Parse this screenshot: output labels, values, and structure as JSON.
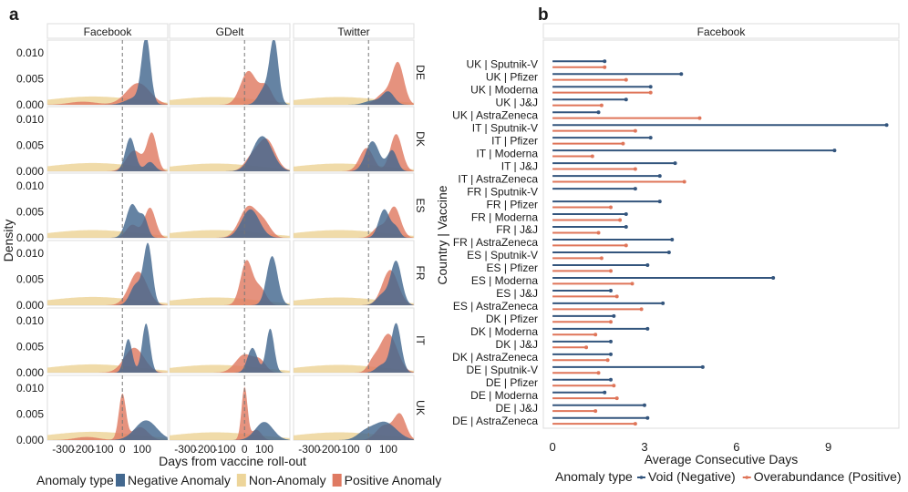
{
  "chart_data": [
    {
      "panel": "a",
      "type": "area",
      "title": "",
      "facet_columns": [
        "Facebook",
        "GDelt",
        "Twitter"
      ],
      "facet_rows": [
        "DE",
        "DK",
        "ES",
        "FR",
        "IT",
        "UK"
      ],
      "xlabel": "Days from vaccine roll-out",
      "ylabel": "Density",
      "xlim": [
        -380,
        230
      ],
      "ylim": [
        0,
        0.0125
      ],
      "x_ticks": [
        {
          "v": -300,
          "label": "-300"
        },
        {
          "v": -200,
          "label": "-200"
        },
        {
          "v": -100,
          "label": "-100"
        },
        {
          "v": 0,
          "label": "0"
        },
        {
          "v": 100,
          "label": "100"
        }
      ],
      "y_ticks": [
        {
          "v": 0,
          "label": "0.000"
        },
        {
          "v": 0.005,
          "label": "0.005"
        },
        {
          "v": 0.01,
          "label": "0.010"
        }
      ],
      "reference_line_x": 0,
      "legend_title": "Anomaly type",
      "legend_position": "bottom",
      "series": [
        {
          "name": "Negative Anomaly",
          "color": "#43688f"
        },
        {
          "name": "Non-Anomaly",
          "color": "#edd59a"
        },
        {
          "name": "Positive Anomaly",
          "color": "#df7a62"
        }
      ],
      "cells": {
        "DE|Facebook": {
          "neg": [
            [
              120,
              0.0126,
              22
            ],
            [
              70,
              0.0014,
              50
            ]
          ],
          "non": [
            [
              -150,
              0.0016,
              230
            ]
          ],
          "pos": [
            [
              80,
              0.0042,
              60
            ],
            [
              -200,
              0.0006,
              70
            ]
          ]
        },
        "DE|GDelt": {
          "neg": [
            [
              150,
              0.0122,
              22
            ],
            [
              100,
              0.003,
              30
            ]
          ],
          "non": [
            [
              -150,
              0.0015,
              230
            ]
          ],
          "pos": [
            [
              20,
              0.0065,
              40
            ],
            [
              110,
              0.0035,
              30
            ]
          ]
        },
        "DE|Twitter": {
          "neg": [
            [
              100,
              0.0025,
              30
            ],
            [
              20,
              0.0008,
              40
            ]
          ],
          "non": [
            [
              -150,
              0.0015,
              230
            ]
          ],
          "pos": [
            [
              150,
              0.0078,
              30
            ],
            [
              80,
              0.0022,
              40
            ]
          ]
        },
        "DK|Facebook": {
          "neg": [
            [
              40,
              0.0065,
              25
            ],
            [
              140,
              0.0018,
              25
            ]
          ],
          "non": [
            [
              -150,
              0.0016,
              230
            ]
          ],
          "pos": [
            [
              150,
              0.0072,
              25
            ],
            [
              60,
              0.004,
              40
            ]
          ]
        },
        "DK|GDelt": {
          "neg": [
            [
              90,
              0.0068,
              50
            ]
          ],
          "non": [
            [
              -150,
              0.0015,
              230
            ]
          ],
          "pos": [
            [
              110,
              0.0062,
              45
            ],
            [
              30,
              0.002,
              35
            ]
          ]
        },
        "DK|Twitter": {
          "neg": [
            [
              20,
              0.0058,
              35
            ],
            [
              120,
              0.004,
              25
            ]
          ],
          "non": [
            [
              -150,
              0.0015,
              230
            ]
          ],
          "pos": [
            [
              140,
              0.0072,
              30
            ],
            [
              -10,
              0.0045,
              35
            ]
          ]
        },
        "ES|Facebook": {
          "neg": [
            [
              50,
              0.0065,
              30
            ],
            [
              110,
              0.0035,
              20
            ]
          ],
          "non": [
            [
              -150,
              0.0015,
              230
            ]
          ],
          "pos": [
            [
              140,
              0.0058,
              28
            ],
            [
              50,
              0.0025,
              30
            ]
          ]
        },
        "ES|GDelt": {
          "neg": [
            [
              30,
              0.0055,
              45
            ]
          ],
          "non": [
            [
              -150,
              0.0015,
              230
            ]
          ],
          "pos": [
            [
              20,
              0.006,
              45
            ],
            [
              100,
              0.0025,
              35
            ]
          ]
        },
        "ES|Twitter": {
          "neg": [
            [
              80,
              0.0055,
              28
            ],
            [
              140,
              0.0018,
              20
            ]
          ],
          "non": [
            [
              -150,
              0.0015,
              230
            ]
          ],
          "pos": [
            [
              130,
              0.006,
              32
            ],
            [
              50,
              0.002,
              30
            ]
          ]
        },
        "FR|Facebook": {
          "neg": [
            [
              130,
              0.0115,
              22
            ],
            [
              70,
              0.004,
              30
            ]
          ],
          "non": [
            [
              -150,
              0.0016,
              230
            ]
          ],
          "pos": [
            [
              80,
              0.0065,
              45
            ]
          ]
        },
        "FR|GDelt": {
          "neg": [
            [
              140,
              0.0095,
              28
            ]
          ],
          "non": [
            [
              -150,
              0.0015,
              230
            ]
          ],
          "pos": [
            [
              10,
              0.0085,
              30
            ],
            [
              80,
              0.0032,
              30
            ]
          ]
        },
        "FR|Twitter": {
          "neg": [
            [
              140,
              0.0085,
              28
            ],
            [
              70,
              0.002,
              30
            ]
          ],
          "non": [
            [
              -150,
              0.0015,
              230
            ]
          ],
          "pos": [
            [
              110,
              0.0068,
              40
            ]
          ]
        },
        "IT|Facebook": {
          "neg": [
            [
              30,
              0.0065,
              20
            ],
            [
              120,
              0.0095,
              20
            ]
          ],
          "non": [
            [
              -150,
              0.0016,
              230
            ]
          ],
          "pos": [
            [
              60,
              0.0048,
              50
            ]
          ]
        },
        "IT|GDelt": {
          "neg": [
            [
              40,
              0.0048,
              25
            ],
            [
              130,
              0.0085,
              20
            ]
          ],
          "non": [
            [
              -150,
              0.0015,
              230
            ]
          ],
          "pos": [
            [
              0,
              0.0035,
              45
            ],
            [
              80,
              0.002,
              30
            ]
          ]
        },
        "IT|Twitter": {
          "neg": [
            [
              140,
              0.0095,
              25
            ],
            [
              70,
              0.0015,
              30
            ]
          ],
          "non": [
            [
              -150,
              0.0015,
              230
            ]
          ],
          "pos": [
            [
              100,
              0.0075,
              45
            ],
            [
              20,
              0.0015,
              25
            ]
          ]
        },
        "UK|Facebook": {
          "neg": [
            [
              120,
              0.0038,
              55
            ]
          ],
          "non": [
            [
              -150,
              0.0016,
              230
            ]
          ],
          "pos": [
            [
              0,
              0.0088,
              18
            ],
            [
              90,
              0.0025,
              40
            ],
            [
              -180,
              0.0006,
              60
            ]
          ]
        },
        "UK|GDelt": {
          "neg": [
            [
              100,
              0.0035,
              45
            ]
          ],
          "non": [
            [
              -150,
              0.0015,
              230
            ]
          ],
          "pos": [
            [
              0,
              0.0102,
              15
            ],
            [
              60,
              0.002,
              25
            ]
          ]
        },
        "UK|Twitter": {
          "neg": [
            [
              80,
              0.0035,
              60
            ],
            [
              -20,
              0.0012,
              40
            ]
          ],
          "non": [
            [
              -150,
              0.0015,
              230
            ]
          ],
          "pos": [
            [
              160,
              0.0048,
              30
            ],
            [
              80,
              0.0028,
              40
            ]
          ]
        }
      }
    },
    {
      "panel": "b",
      "type": "bar",
      "orientation": "horizontal",
      "facet_title": "Facebook",
      "xlabel": "Average Consecutive Days",
      "ylabel": "Country | Vaccine",
      "xlim": [
        -0.3,
        11.3
      ],
      "x_ticks": [
        0,
        3,
        6,
        9
      ],
      "legend_title": "Anomaly type",
      "legend_position": "bottom",
      "series": [
        {
          "name": "Void (Negative)",
          "key": "void",
          "color": "#33557d"
        },
        {
          "name": "Overabundance (Positive)",
          "key": "over",
          "color": "#df7559"
        }
      ],
      "categories": [
        "UK | Sputnik-V",
        "UK | Pfizer",
        "UK | Moderna",
        "UK | J&J",
        "UK | AstraZeneca",
        "IT | Sputnik-V",
        "IT | Pfizer",
        "IT | Moderna",
        "IT | J&J",
        "IT | AstraZeneca",
        "FR | Sputnik-V",
        "FR | Pfizer",
        "FR | Moderna",
        "FR | J&J",
        "FR | AstraZeneca",
        "ES | Sputnik-V",
        "ES | Pfizer",
        "ES | Moderna",
        "ES | J&J",
        "ES | AstraZeneca",
        "DK | Pfizer",
        "DK | Moderna",
        "DK | J&J",
        "DK | AstraZeneca",
        "DE | Sputnik-V",
        "DE | Pfizer",
        "DE | Moderna",
        "DE | J&J",
        "DE | AstraZeneca"
      ],
      "void": [
        1.7,
        4.2,
        3.2,
        2.4,
        1.5,
        10.9,
        3.2,
        9.2,
        4.0,
        3.5,
        2.7,
        3.5,
        2.4,
        2.4,
        3.9,
        3.8,
        3.1,
        7.2,
        1.9,
        3.6,
        2.0,
        3.1,
        1.9,
        1.9,
        4.9,
        1.9,
        1.7,
        3.0,
        3.1
      ],
      "over": [
        1.7,
        2.4,
        3.2,
        1.6,
        4.8,
        2.7,
        2.3,
        1.3,
        2.7,
        4.3,
        null,
        1.9,
        2.2,
        1.5,
        2.4,
        1.6,
        1.9,
        2.6,
        2.1,
        2.9,
        1.9,
        1.4,
        1.1,
        1.8,
        1.5,
        2.0,
        2.1,
        1.4,
        2.7
      ]
    }
  ]
}
